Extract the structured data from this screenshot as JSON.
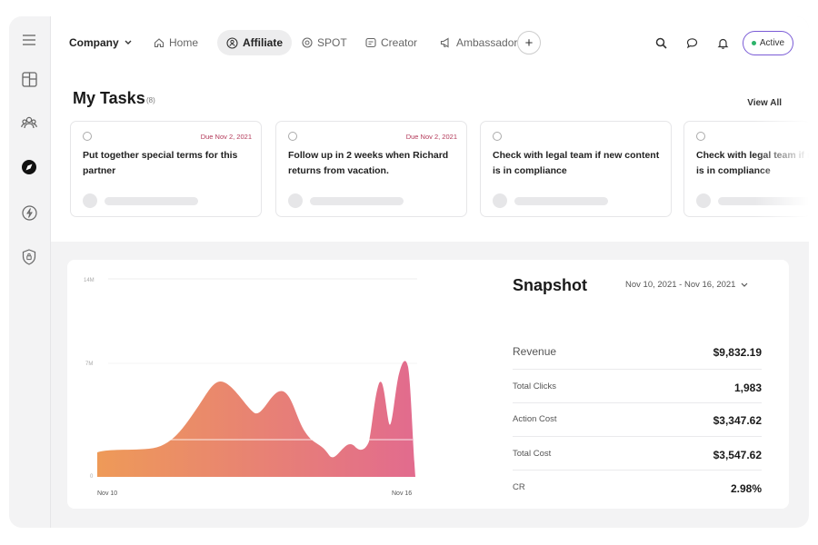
{
  "nav": {
    "company": "Company",
    "tabs": [
      {
        "label": "Home"
      },
      {
        "label": "Affiliate"
      },
      {
        "label": "SPOT"
      },
      {
        "label": "Creator"
      },
      {
        "label": "Ambassador"
      }
    ],
    "add": "+",
    "status": "Active",
    "accent": "#7a5bd6"
  },
  "tasks": {
    "title": "My Tasks",
    "count": "(8)",
    "view_all": "View All",
    "items": [
      {
        "due": "Due Nov 2, 2021",
        "text": "Put together special terms for this partner"
      },
      {
        "due": "Due Nov 2, 2021",
        "text": "Follow up in 2 weeks when Richard returns from vacation."
      },
      {
        "due": "",
        "text": "Check with legal team if new content is in compliance"
      },
      {
        "due": "",
        "text": "Check with legal team if new content is in compliance"
      }
    ]
  },
  "chart_data": {
    "type": "area",
    "x_labels": [
      "Nov 10",
      "Nov 16"
    ],
    "y_ticks": [
      "14M",
      "7M",
      "0"
    ],
    "gradient": [
      "#ee9a58",
      "#e26b8e"
    ]
  },
  "snapshot": {
    "title": "Snapshot",
    "range": "Nov 10, 2021 - Nov 16, 2021",
    "stats": [
      {
        "label": "Revenue",
        "value": "$9,832.19"
      },
      {
        "label": "Total Clicks",
        "value": "1,983"
      },
      {
        "label": "Action Cost",
        "value": "$3,347.62"
      },
      {
        "label": "Total Cost",
        "value": "$3,547.62"
      },
      {
        "label": "CR",
        "value": "2.98%"
      }
    ]
  }
}
